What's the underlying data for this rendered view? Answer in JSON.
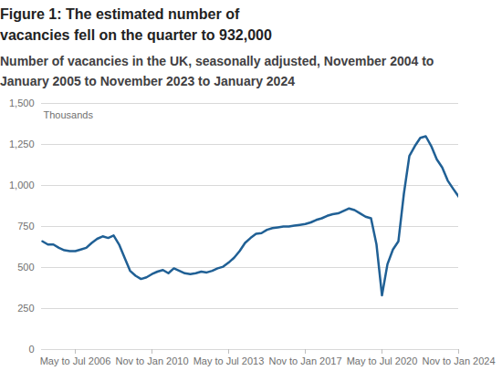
{
  "chart_data": {
    "type": "line",
    "title": "Figure 1: The estimated number of vacancies fell on the quarter to 932,000",
    "subtitle": "Number of vacancies in the UK, seasonally adjusted, November 2004 to January 2005 to November 2023 to January 2024",
    "y_label": "Thousands",
    "categories": [
      null,
      null,
      null,
      null,
      null,
      null,
      "May to Jul 2006",
      null,
      null,
      null,
      null,
      null,
      null,
      null,
      null,
      null,
      null,
      null,
      null,
      null,
      "Nov to Jan 2010",
      null,
      null,
      null,
      null,
      null,
      null,
      null,
      null,
      null,
      null,
      null,
      null,
      null,
      "May to Jul 2013",
      null,
      null,
      null,
      null,
      null,
      null,
      null,
      null,
      null,
      null,
      null,
      null,
      null,
      "Nov to Jan 2017",
      null,
      null,
      null,
      null,
      null,
      null,
      null,
      null,
      null,
      null,
      null,
      null,
      null,
      "May to Jul 2020",
      null,
      null,
      null,
      null,
      null,
      null,
      null,
      null,
      null,
      null,
      null,
      null,
      null,
      "Nov to Jan 2024"
    ],
    "values": [
      660,
      640,
      640,
      620,
      605,
      600,
      600,
      610,
      620,
      650,
      675,
      690,
      680,
      695,
      640,
      560,
      480,
      450,
      430,
      440,
      460,
      475,
      485,
      465,
      495,
      480,
      465,
      460,
      465,
      475,
      470,
      480,
      495,
      505,
      530,
      560,
      600,
      650,
      680,
      705,
      710,
      730,
      740,
      745,
      750,
      750,
      755,
      760,
      765,
      775,
      790,
      800,
      815,
      825,
      830,
      845,
      860,
      850,
      830,
      810,
      800,
      640,
      330,
      520,
      610,
      660,
      950,
      1180,
      1240,
      1290,
      1300,
      1240,
      1160,
      1110,
      1030,
      980,
      932
    ],
    "color": "#206095",
    "ylim": [
      0,
      1500
    ],
    "yticks": [
      0,
      250,
      500,
      750,
      {
        "value": 1000,
        "label": "1,000"
      },
      {
        "value": 1250,
        "label": "1,250"
      },
      {
        "value": 1500,
        "label": "1,500"
      }
    ],
    "grid": true
  }
}
